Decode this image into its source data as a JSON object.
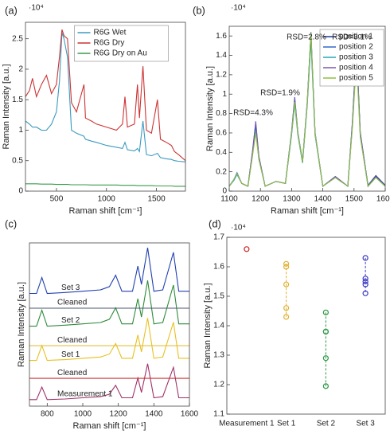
{
  "chart_data": [
    {
      "type": "line",
      "panel": "(a)",
      "multiplier": "·10⁴",
      "xlabel": "Raman shift [cm⁻¹]",
      "ylabel": "Raman Intensity [a.u.]",
      "xlim": [
        190,
        1790
      ],
      "xticks": [
        500,
        1000,
        1500
      ],
      "ylim": [
        0,
        2.77
      ],
      "yticks": [
        0,
        0.5,
        1,
        1.5,
        2,
        2.5
      ],
      "legend": "upper center",
      "x": [
        190,
        230,
        260,
        300,
        350,
        400,
        450,
        500,
        530,
        555,
        575,
        610,
        650,
        700,
        775,
        790,
        850,
        900,
        1000,
        1100,
        1160,
        1185,
        1210,
        1280,
        1310,
        1330,
        1365,
        1400,
        1450,
        1510,
        1540,
        1600,
        1650,
        1680,
        1720,
        1790
      ],
      "series": [
        {
          "name": "R6G Wet",
          "color": "#3a9ac0",
          "values": [
            1.15,
            1.1,
            1.05,
            1.05,
            1.0,
            1.0,
            1.1,
            1.3,
            1.8,
            2.6,
            2.5,
            2.2,
            1.0,
            0.95,
            0.9,
            0.85,
            0.82,
            0.8,
            0.75,
            0.72,
            0.7,
            0.8,
            0.68,
            0.66,
            0.7,
            0.65,
            1.15,
            0.6,
            0.58,
            0.62,
            0.55,
            0.53,
            0.52,
            0.5,
            0.49,
            0.48
          ]
        },
        {
          "name": "R6G Dry",
          "color": "#cc3333",
          "values": [
            1.55,
            1.65,
            1.85,
            1.55,
            1.75,
            1.9,
            1.6,
            1.75,
            2.2,
            2.65,
            2.55,
            2.5,
            1.45,
            1.3,
            1.75,
            1.2,
            1.15,
            1.1,
            1.05,
            1.0,
            1.1,
            1.55,
            1.05,
            1.1,
            1.75,
            1.2,
            2.05,
            1.0,
            0.95,
            1.5,
            0.85,
            0.8,
            0.75,
            0.65,
            0.6,
            0.5
          ]
        },
        {
          "name": "R6G Dry on Au",
          "color": "#3a9a4a",
          "values": [
            0.12,
            0.12,
            0.12,
            0.12,
            0.115,
            0.115,
            0.115,
            0.11,
            0.11,
            0.11,
            0.11,
            0.11,
            0.105,
            0.105,
            0.105,
            0.105,
            0.1,
            0.1,
            0.1,
            0.1,
            0.095,
            0.095,
            0.095,
            0.095,
            0.09,
            0.09,
            0.09,
            0.09,
            0.09,
            0.085,
            0.085,
            0.085,
            0.085,
            0.08,
            0.08,
            0.08
          ]
        }
      ]
    },
    {
      "type": "line",
      "panel": "(b)",
      "multiplier": "·10⁴",
      "xlabel": "Raman shift [cm⁻¹]",
      "ylabel": "Raman Intensity [a.u.]",
      "xlim": [
        1100,
        1600
      ],
      "xticks": [
        1100,
        1200,
        1300,
        1400,
        1500,
        1600
      ],
      "ylim": [
        0,
        1.7
      ],
      "yticks": [
        0,
        0.2,
        0.4,
        0.6,
        0.8,
        1,
        1.2,
        1.4,
        1.6
      ],
      "legend": "upper right",
      "annotations": [
        "RSD=4.3%",
        "RSD=1.9%",
        "RSD=2.8%",
        "RSD=3.1%"
      ],
      "x": [
        1100,
        1115,
        1125,
        1140,
        1160,
        1175,
        1185,
        1195,
        1215,
        1250,
        1280,
        1300,
        1310,
        1320,
        1335,
        1350,
        1362,
        1375,
        1400,
        1440,
        1480,
        1495,
        1508,
        1520,
        1545,
        1570,
        1600
      ],
      "series": [
        {
          "name": "position 1",
          "color": "#1f3a93",
          "values": [
            0.05,
            0.12,
            0.18,
            0.08,
            0.05,
            0.4,
            0.66,
            0.35,
            0.05,
            0.1,
            0.08,
            0.6,
            0.93,
            0.6,
            0.3,
            0.9,
            1.6,
            0.6,
            0.05,
            0.15,
            0.05,
            0.7,
            1.47,
            0.6,
            0.06,
            0.16,
            0.06
          ]
        },
        {
          "name": "position 2",
          "color": "#3366cc",
          "values": [
            0.05,
            0.12,
            0.19,
            0.08,
            0.05,
            0.42,
            0.7,
            0.36,
            0.05,
            0.1,
            0.08,
            0.62,
            0.97,
            0.61,
            0.31,
            0.92,
            1.64,
            0.61,
            0.05,
            0.15,
            0.05,
            0.72,
            1.5,
            0.61,
            0.05,
            0.15,
            0.05
          ]
        },
        {
          "name": "position 3",
          "color": "#20a8b8",
          "values": [
            0.05,
            0.11,
            0.17,
            0.08,
            0.05,
            0.38,
            0.63,
            0.33,
            0.05,
            0.1,
            0.08,
            0.58,
            0.9,
            0.58,
            0.29,
            0.88,
            1.55,
            0.58,
            0.05,
            0.14,
            0.05,
            0.68,
            1.42,
            0.58,
            0.05,
            0.14,
            0.05
          ]
        },
        {
          "name": "position 4",
          "color": "#7b55b0",
          "values": [
            0.05,
            0.12,
            0.18,
            0.08,
            0.05,
            0.42,
            0.72,
            0.36,
            0.05,
            0.1,
            0.08,
            0.61,
            0.96,
            0.6,
            0.3,
            0.91,
            1.63,
            0.6,
            0.05,
            0.15,
            0.05,
            0.7,
            1.46,
            0.6,
            0.05,
            0.15,
            0.05
          ]
        },
        {
          "name": "position 5",
          "color": "#8fbf3f",
          "values": [
            0.05,
            0.12,
            0.18,
            0.08,
            0.05,
            0.37,
            0.6,
            0.33,
            0.05,
            0.1,
            0.08,
            0.6,
            0.92,
            0.6,
            0.3,
            0.9,
            1.63,
            0.6,
            0.05,
            0.14,
            0.05,
            0.66,
            1.35,
            0.56,
            0.05,
            0.14,
            0.05
          ]
        }
      ]
    },
    {
      "type": "offset-lines",
      "panel": "(c)",
      "xlabel": "Raman shift [cm⁻¹]",
      "ylabel": "Raman Intensity [a.u.]",
      "xlim": [
        700,
        1600
      ],
      "xticks": [
        800,
        1000,
        1200,
        1400,
        1600
      ],
      "ylim": [
        0,
        10
      ],
      "x": [
        700,
        740,
        770,
        800,
        900,
        1000,
        1100,
        1150,
        1185,
        1220,
        1280,
        1310,
        1330,
        1365,
        1400,
        1450,
        1510,
        1540,
        1600
      ],
      "series": [
        {
          "name": "Measurement 1",
          "color": "#a0306a",
          "values": [
            0.4,
            0.4,
            1.17,
            0.4,
            0.44,
            0.51,
            0.58,
            0.73,
            1.28,
            0.51,
            0.51,
            1.72,
            0.84,
            2.6,
            0.51,
            0.58,
            2.38,
            0.51,
            0.51
          ]
        },
        {
          "name": "Cleaned",
          "color": "#d03030",
          "values": [
            1.7,
            1.7,
            1.7,
            1.7,
            1.7,
            1.7,
            1.7,
            1.7,
            1.7,
            1.7,
            1.7,
            1.7,
            1.7,
            1.7,
            1.7,
            1.7,
            1.7,
            1.7,
            1.7
          ]
        },
        {
          "name": "Set 1",
          "color": "#e8c020",
          "values": [
            2.8,
            2.8,
            3.71,
            2.8,
            2.85,
            2.93,
            3.01,
            3.19,
            3.84,
            2.93,
            2.93,
            4.36,
            3.32,
            5.4,
            2.93,
            3.01,
            5.14,
            2.93,
            2.93
          ]
        },
        {
          "name": "Cleaned",
          "color": "#e0c040",
          "values": [
            3.7,
            3.7,
            3.7,
            3.7,
            3.7,
            3.7,
            3.7,
            3.7,
            3.7,
            3.7,
            3.7,
            3.7,
            3.7,
            3.7,
            3.7,
            3.7,
            3.7,
            3.7,
            3.7
          ]
        },
        {
          "name": "Set 2",
          "color": "#2e8b3a",
          "values": [
            4.9,
            4.9,
            5.88,
            4.9,
            4.96,
            5.04,
            5.12,
            5.32,
            6.02,
            5.04,
            5.04,
            6.58,
            5.46,
            7.7,
            5.04,
            5.12,
            7.42,
            5.04,
            5.04
          ]
        },
        {
          "name": "Cleaned",
          "color": "#4a5a70",
          "values": [
            6.0,
            6.0,
            6.0,
            6.0,
            6.0,
            6.0,
            6.0,
            6.0,
            6.0,
            6.0,
            6.0,
            6.0,
            6.0,
            6.0,
            6.0,
            6.0,
            6.0,
            6.0,
            6.0
          ]
        },
        {
          "name": "Set 3",
          "color": "#2040b0",
          "values": [
            6.9,
            6.9,
            7.88,
            6.9,
            6.96,
            7.04,
            7.12,
            7.32,
            8.02,
            7.04,
            7.04,
            8.58,
            7.46,
            9.7,
            7.04,
            7.12,
            9.42,
            7.04,
            7.04
          ]
        }
      ]
    },
    {
      "type": "dots",
      "panel": "(d)",
      "multiplier": "·10⁴",
      "ylabel": "Raman Intensity [a.u.]",
      "categories": [
        "Measurement 1",
        "Set 1",
        "Set 2",
        "Set 3"
      ],
      "colors": [
        "#cc2222",
        "#e0b030",
        "#2e9a48",
        "#3c3cc8"
      ],
      "values": [
        [
          1.66
        ],
        [
          1.61,
          1.6,
          1.54,
          1.46,
          1.43
        ],
        [
          1.445,
          1.38,
          1.38,
          1.29,
          1.195
        ],
        [
          1.63,
          1.56,
          1.55,
          1.54,
          1.51
        ]
      ],
      "ylim": [
        1.1,
        1.7
      ],
      "yticks": [
        1.1,
        1.2,
        1.3,
        1.4,
        1.5,
        1.6,
        1.7
      ]
    }
  ]
}
